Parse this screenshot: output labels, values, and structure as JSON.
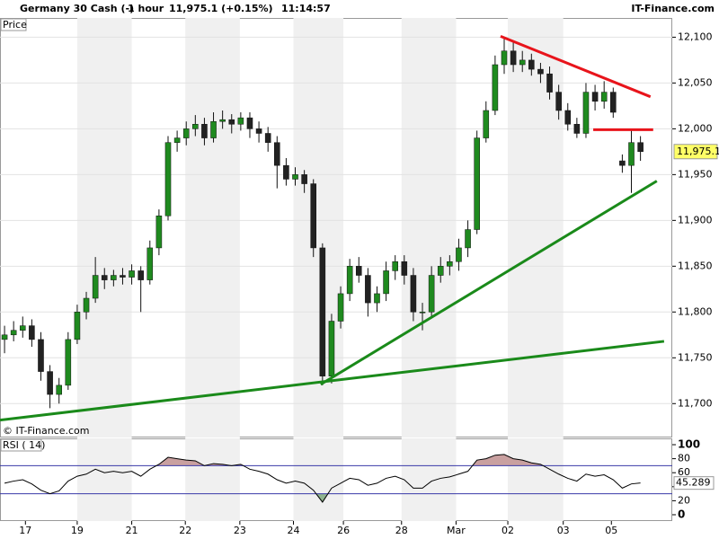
{
  "chart_data": [
    {
      "type": "candlestick",
      "title": "Germany 30 Cash (-)",
      "interval": "1 hour",
      "quote": "11,975.1 (+0.15%)",
      "time": "11:14:57",
      "brand": "IT-Finance.com",
      "panel_label": "Price",
      "watermark": "© IT-Finance.com",
      "xlim": [
        -0.5,
        73.5
      ],
      "xticks": [
        {
          "value": 2.3,
          "label": "17"
        },
        {
          "value": 8.0,
          "label": "19"
        },
        {
          "value": 14.0,
          "label": "21"
        },
        {
          "value": 19.9,
          "label": "22"
        },
        {
          "value": 25.9,
          "label": "23"
        },
        {
          "value": 31.8,
          "label": "24"
        },
        {
          "value": 37.3,
          "label": "26"
        },
        {
          "value": 43.7,
          "label": "28"
        },
        {
          "value": 49.7,
          "label": "Mar"
        },
        {
          "value": 55.4,
          "label": "02"
        },
        {
          "value": 61.5,
          "label": "03"
        },
        {
          "value": 66.8,
          "label": "05"
        }
      ],
      "ylim": [
        11663,
        12121
      ],
      "yticks": [
        {
          "value": 11700,
          "label": "11,700"
        },
        {
          "value": 11750,
          "label": "11,750"
        },
        {
          "value": 11800,
          "label": "11,800"
        },
        {
          "value": 11850,
          "label": "11,850"
        },
        {
          "value": 11900,
          "label": "11,900"
        },
        {
          "value": 11950,
          "label": "11,950"
        },
        {
          "value": 12000,
          "label": "12,000"
        },
        {
          "value": 12050,
          "label": "12,050"
        },
        {
          "value": 12100,
          "label": "12,100"
        }
      ],
      "grid": true,
      "up_color": "#1f8a1f",
      "down_color": "#222222",
      "open": [
        11770,
        11775,
        11780,
        11785,
        11770,
        11735,
        11710,
        11720,
        11770,
        11800,
        11815,
        11840,
        11835,
        11840,
        11838,
        11845,
        11835,
        11870,
        11905,
        11985,
        11990,
        12000,
        12005,
        11990,
        12008,
        12010,
        12005,
        12012,
        12000,
        11995,
        11985,
        11960,
        11945,
        11950,
        11940,
        11870,
        11730,
        11790,
        11820,
        11850,
        11840,
        11810,
        11820,
        11845,
        11855,
        11840,
        11800,
        11800,
        11840,
        11850,
        11855,
        11870,
        11890,
        11990,
        12020,
        12070,
        12085,
        12070,
        12075,
        12065,
        12060,
        12040,
        12020,
        12005,
        11995,
        12040,
        12030,
        12040,
        11965,
        11960,
        11985
      ],
      "high": [
        11785,
        11790,
        11795,
        11792,
        11778,
        11742,
        11728,
        11778,
        11808,
        11822,
        11860,
        11848,
        11846,
        11848,
        11852,
        11850,
        11878,
        11912,
        11992,
        11998,
        12008,
        12015,
        12012,
        12018,
        12020,
        12016,
        12018,
        12018,
        12008,
        12002,
        11992,
        11968,
        11958,
        11955,
        11945,
        11875,
        11798,
        11828,
        11858,
        11860,
        11848,
        11828,
        11855,
        11862,
        11862,
        11848,
        11810,
        11850,
        11860,
        11862,
        11880,
        11900,
        11998,
        12030,
        12080,
        12100,
        12095,
        12085,
        12082,
        12072,
        12068,
        12048,
        12028,
        12012,
        12050,
        12048,
        12052,
        12045,
        11972,
        11998,
        11992
      ],
      "low": [
        11755,
        11768,
        11772,
        11762,
        11725,
        11695,
        11700,
        11715,
        11765,
        11792,
        11810,
        11825,
        11828,
        11830,
        11830,
        11800,
        11830,
        11862,
        11900,
        11975,
        11982,
        11992,
        11982,
        11985,
        12000,
        11995,
        11998,
        11990,
        11985,
        11975,
        11935,
        11938,
        11938,
        11930,
        11860,
        11720,
        11722,
        11782,
        11812,
        11832,
        11795,
        11800,
        11812,
        11835,
        11830,
        11790,
        11780,
        11795,
        11832,
        11840,
        11845,
        11860,
        11885,
        11985,
        12015,
        12060,
        12062,
        12062,
        12058,
        12050,
        12032,
        12010,
        11998,
        11990,
        11990,
        12020,
        12022,
        12012,
        11952,
        11930,
        11965
      ],
      "close": [
        11775,
        11780,
        11785,
        11770,
        11735,
        11710,
        11720,
        11770,
        11800,
        11815,
        11840,
        11835,
        11840,
        11838,
        11845,
        11835,
        11870,
        11905,
        11985,
        11990,
        12000,
        12005,
        11990,
        12008,
        12010,
        12005,
        12012,
        12000,
        11995,
        11985,
        11960,
        11945,
        11950,
        11940,
        11870,
        11730,
        11790,
        11820,
        11850,
        11840,
        11810,
        11820,
        11845,
        11855,
        11840,
        11800,
        11800,
        11840,
        11850,
        11855,
        11870,
        11890,
        11990,
        12020,
        12070,
        12085,
        12070,
        12075,
        12065,
        12060,
        12040,
        12020,
        12005,
        11995,
        12040,
        12030,
        12040,
        12018,
        11960,
        11985,
        11975.1
      ],
      "last_close_label": "11,975.1",
      "trendlines": [
        {
          "color": "#e8141b",
          "x": [
            54.6,
            71.1
          ],
          "y": [
            12101,
            12035
          ]
        },
        {
          "color": "#e8141b",
          "x": [
            64.8,
            71.4
          ],
          "y": [
            11999,
            11999
          ]
        },
        {
          "color": "#1a8a1a",
          "x": [
            34.8,
            71.8
          ],
          "y": [
            11721,
            11943
          ]
        },
        {
          "color": "#1a8a1a",
          "x": [
            -0.5,
            72.6
          ],
          "y": [
            11682,
            11768
          ]
        }
      ]
    },
    {
      "type": "line",
      "name": "RSI ( 14)",
      "color": "#000000",
      "xlim": [
        -0.5,
        73.5
      ],
      "ylim": [
        -9,
        109
      ],
      "yticks": [
        0,
        20,
        40,
        60,
        80,
        100
      ],
      "levels": [
        30,
        70
      ],
      "level_color": "#3a3aa8",
      "overbought_color": "#c9a0a0",
      "oversold_color": "#8fb48f",
      "values": [
        45,
        48,
        50,
        44,
        35,
        30,
        34,
        48,
        55,
        58,
        65,
        60,
        62,
        60,
        62,
        55,
        65,
        72,
        82,
        80,
        78,
        77,
        70,
        73,
        72,
        70,
        72,
        65,
        62,
        58,
        50,
        45,
        48,
        45,
        35,
        18,
        38,
        45,
        52,
        50,
        42,
        45,
        52,
        55,
        50,
        38,
        38,
        48,
        52,
        54,
        58,
        62,
        78,
        80,
        85,
        86,
        80,
        78,
        74,
        72,
        65,
        58,
        52,
        48,
        58,
        55,
        57,
        50,
        38,
        44,
        45.289
      ]
    }
  ]
}
